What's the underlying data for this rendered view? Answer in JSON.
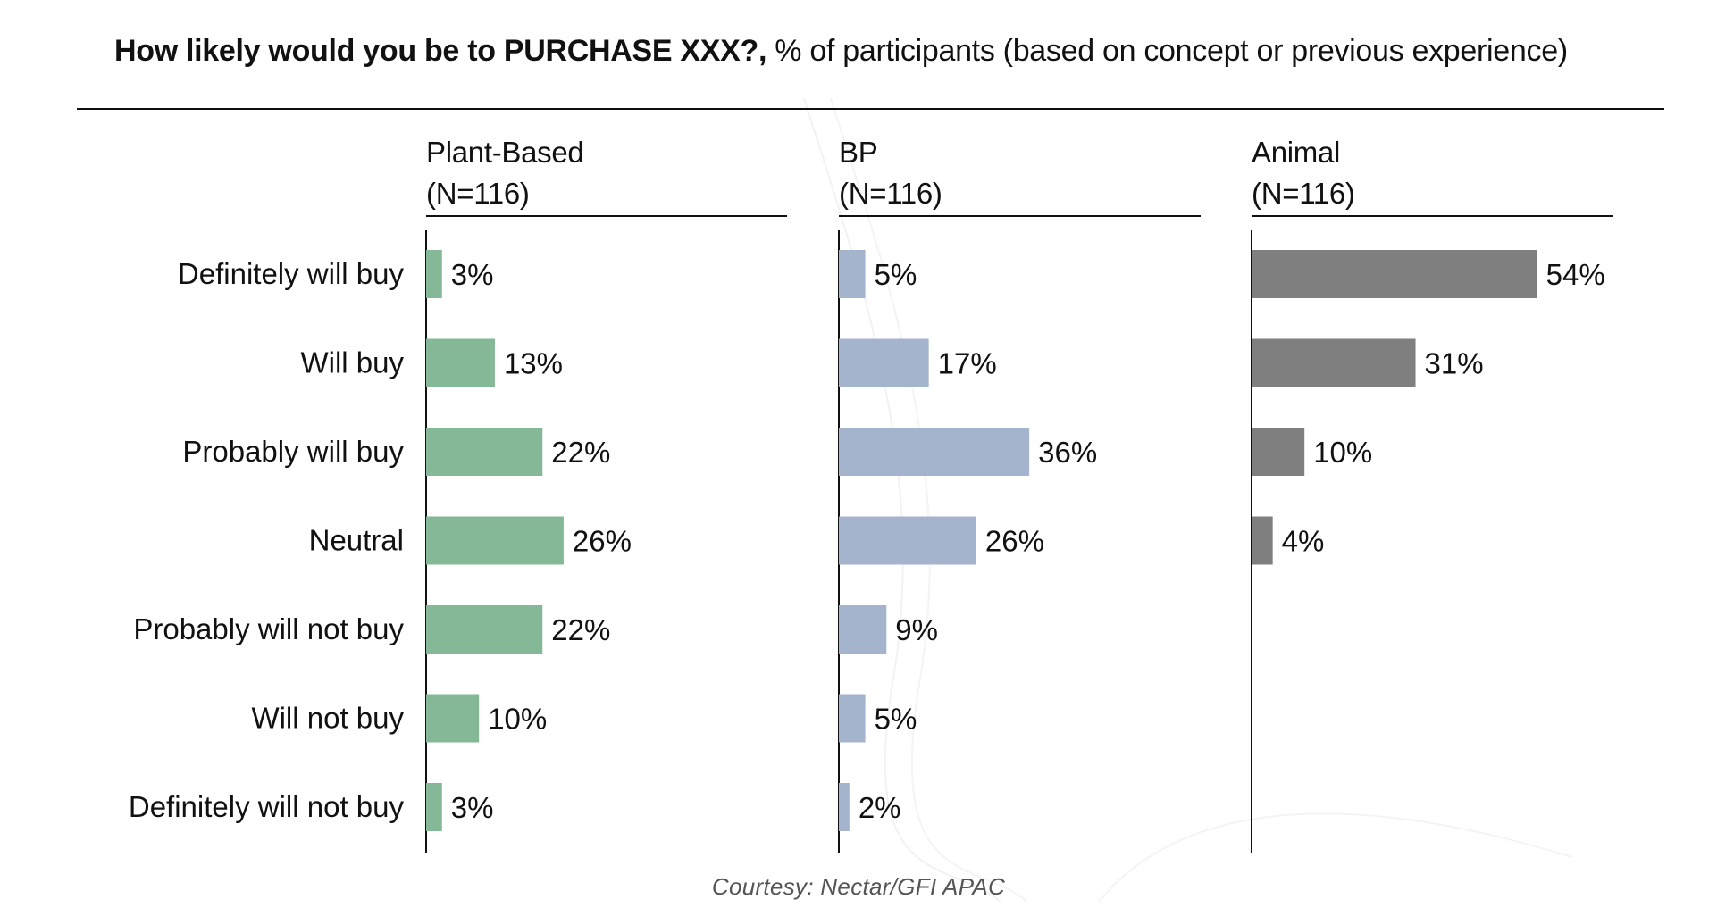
{
  "title": {
    "bold": "How likely would you be to PURCHASE XXX?,",
    "rest": " % of participants (based on concept or previous experience)"
  },
  "colors": {
    "plant_based": "#84b896",
    "bp": "#a3b4cc",
    "animal": "#7f7f7f",
    "text": "#111111"
  },
  "chart_data": {
    "type": "bar",
    "orientation": "horizontal",
    "title": "How likely would you be to PURCHASE XXX?, % of participants (based on concept or previous experience)",
    "categories": [
      "Definitely will buy",
      "Will buy",
      "Probably will buy",
      "Neutral",
      "Probably will not buy",
      "Will not buy",
      "Definitely will not buy"
    ],
    "value_suffix": "%",
    "xlim": [
      0,
      60
    ],
    "series": [
      {
        "name": "Plant-Based",
        "n_label": "(N=116)",
        "color": "#84b896",
        "values": [
          3,
          13,
          22,
          26,
          22,
          10,
          3
        ]
      },
      {
        "name": "BP",
        "n_label": "(N=116)",
        "color": "#a3b4cc",
        "values": [
          5,
          17,
          36,
          26,
          9,
          5,
          2
        ]
      },
      {
        "name": "Animal",
        "n_label": "(N=116)",
        "color": "#7f7f7f",
        "values": [
          54,
          31,
          10,
          4,
          null,
          null,
          null
        ]
      }
    ]
  },
  "source": "Courtesy: Nectar/GFI APAC"
}
